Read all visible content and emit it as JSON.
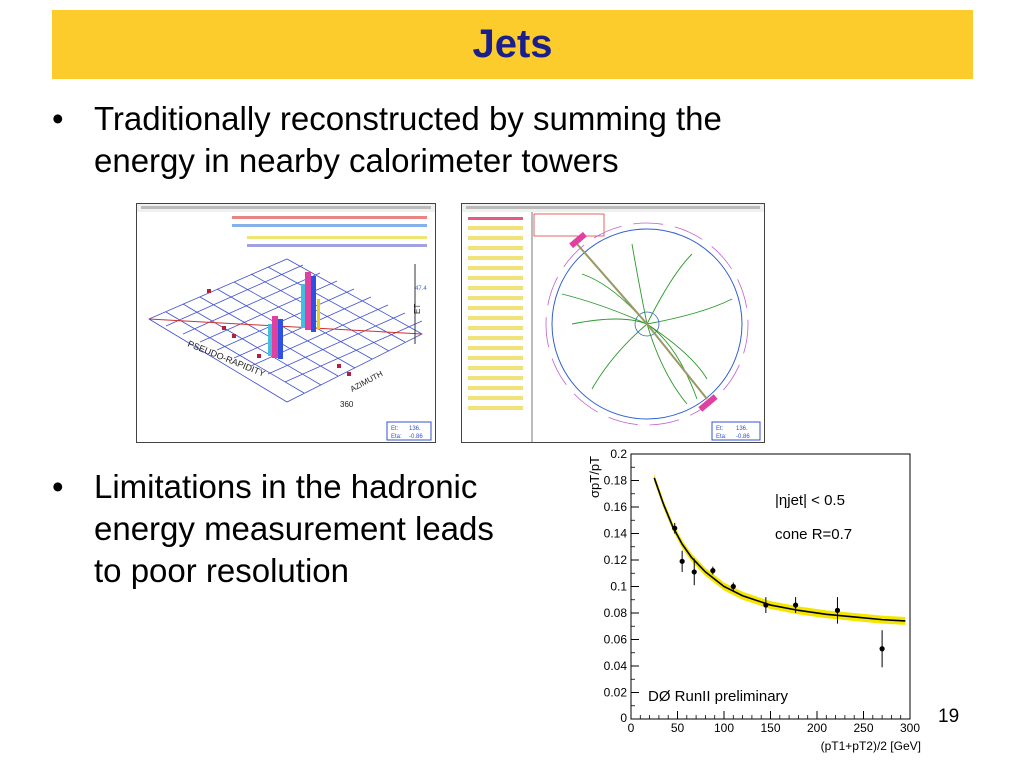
{
  "slide": {
    "title": "Jets",
    "bullets": [
      {
        "marker": "•",
        "lines": [
          "Traditionally reconstructed by summing the",
          "energy in nearby calorimeter towers"
        ]
      },
      {
        "marker": "•",
        "lines": [
          "Limitations in the hadronic",
          "energy measurement leads",
          "to poor resolution"
        ]
      }
    ],
    "page_number": "19"
  },
  "lego_plot": {
    "axis_eta": "PSEUDO-RAPIDITY",
    "axis_phi": "AZIMUTH",
    "axis_et": "ET",
    "readout": "136.",
    "readout2": "-0.86"
  },
  "xy_view": {
    "readout": "136.",
    "readout2": "-0.86"
  },
  "colors": {
    "title_bar": "#fccc2c",
    "title_text": "#1b1f8c",
    "resolution_band": "#f5e600"
  },
  "chart_data": {
    "type": "scatter",
    "title": "",
    "xlabel": "(pT1+pT2)/2 [GeV]",
    "ylabel": "σpT/pT",
    "xlim": [
      0,
      300
    ],
    "ylim": [
      0,
      0.2
    ],
    "x_ticks": [
      0,
      50,
      100,
      150,
      200,
      250,
      300
    ],
    "y_ticks": [
      0.02,
      0.04,
      0.06,
      0.08,
      0.1,
      0.12,
      0.14,
      0.16,
      0.18,
      0.2
    ],
    "y_tick_labels": [
      "0.02",
      "0.04",
      "0.06",
      "0.08",
      "0.1",
      "0.12",
      "0.14",
      "0.16",
      "0.18",
      "0.2"
    ],
    "annotations": [
      "|ηjet| < 0.5",
      "cone R=0.7",
      "DØ RunII preliminary"
    ],
    "series": [
      {
        "values_x": [
          47,
          55,
          68,
          88,
          110,
          145,
          177,
          222,
          270
        ],
        "values_y": [
          0.144,
          0.119,
          0.111,
          0.112,
          0.1,
          0.086,
          0.086,
          0.082,
          0.053
        ],
        "errors_y": [
          0.004,
          0.008,
          0.01,
          0.003,
          0.003,
          0.006,
          0.006,
          0.01,
          0.014
        ]
      }
    ],
    "fit_curve": {
      "x": [
        25,
        35,
        45,
        55,
        65,
        80,
        100,
        120,
        150,
        180,
        210,
        240,
        270,
        295
      ],
      "y": [
        0.182,
        0.162,
        0.145,
        0.132,
        0.122,
        0.111,
        0.1,
        0.093,
        0.086,
        0.082,
        0.079,
        0.077,
        0.075,
        0.074
      ],
      "band": 0.003
    }
  }
}
